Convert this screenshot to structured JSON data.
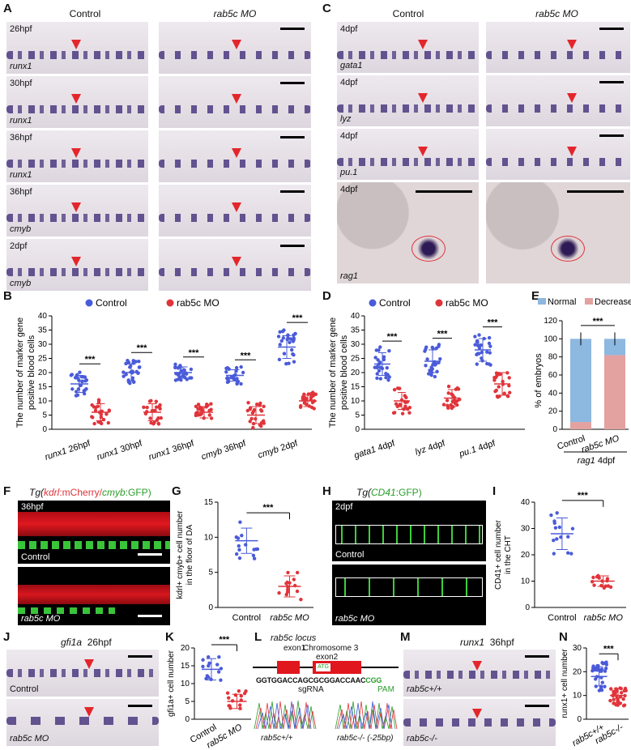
{
  "panels": {
    "A": {
      "label": "A",
      "control": "Control",
      "mo": "rab5c MO",
      "rows": [
        {
          "stage": "26hpf",
          "gene": "runx1"
        },
        {
          "stage": "30hpf",
          "gene": "runx1"
        },
        {
          "stage": "36hpf",
          "gene": "runx1"
        },
        {
          "stage": "36hpf",
          "gene": "cmyb"
        },
        {
          "stage": "2dpf",
          "gene": "cmyb"
        }
      ]
    },
    "C": {
      "label": "C",
      "control": "Control",
      "mo": "rab5c MO",
      "rows": [
        {
          "stage": "4dpf",
          "gene": "gata1"
        },
        {
          "stage": "4dpf",
          "gene": "lyz"
        },
        {
          "stage": "4dpf",
          "gene": "pu.1"
        },
        {
          "stage": "4dpf",
          "gene": "rag1"
        }
      ]
    },
    "B": {
      "label": "B"
    },
    "D": {
      "label": "D"
    },
    "E": {
      "label": "E"
    },
    "F": {
      "label": "F",
      "title_pre": "Tg(",
      "kdrl": "kdrl",
      "mcherry": ":mCherry/",
      "cmyb": "cmyb",
      "gfp": ":GFP)",
      "stage": "36hpf",
      "top": "Control",
      "bottom": "rab5c MO"
    },
    "G": {
      "label": "G"
    },
    "H": {
      "label": "H",
      "title_pre": "Tg(",
      "cd41": "CD41",
      "gfp": ":GFP)",
      "stage": "2dpf",
      "top": "Control",
      "bottom": "rab5c MO"
    },
    "I": {
      "label": "I"
    },
    "J": {
      "label": "J",
      "gene": "gfi1a",
      "stage": "26hpf",
      "top": "Control",
      "bottom": "rab5c MO"
    },
    "K": {
      "label": "K"
    },
    "L": {
      "label": "L",
      "locus": "rab5c locus",
      "exon1": "exon1",
      "exon2": "exon2",
      "chrom": "Chromosome 3",
      "atg": "ATG",
      "seq": "GGTGGACCAGCGCGGACCAAC",
      "pam_seq": "CGG",
      "sgrna": "sgRNA",
      "pam": "PAM",
      "wt": "rab5c+/+",
      "mut": "rab5c-/- (-25bp)"
    },
    "M": {
      "label": "M",
      "gene": "runx1",
      "stage": "36hpf",
      "top": "rab5c+/+",
      "bottom": "rab5c-/-"
    },
    "N": {
      "label": "N"
    }
  },
  "chart_data": [
    {
      "id": "B",
      "type": "scatter",
      "ylabel": "The number of marker gene positive blood cells",
      "ylim": [
        0,
        40
      ],
      "yticks": [
        0,
        5,
        10,
        15,
        20,
        25,
        30,
        35,
        40
      ],
      "legend": [
        {
          "name": "Control",
          "color": "#4a5bd9"
        },
        {
          "name": "rab5c MO",
          "color": "#e0343a"
        }
      ],
      "categories": [
        "runx1 26hpf",
        "runx1 30hpf",
        "runx1 36hpf",
        "cmyb 36hpf",
        "cmyb 2dpf"
      ],
      "series": [
        {
          "name": "Control",
          "means": [
            16,
            20,
            20,
            19,
            29
          ],
          "sd": [
            3,
            3,
            2,
            2,
            4
          ]
        },
        {
          "name": "rab5c MO",
          "means": [
            6,
            6,
            6,
            5,
            10
          ],
          "sd": [
            3,
            3,
            2,
            3,
            2
          ]
        }
      ],
      "significance": [
        "***",
        "***",
        "***",
        "***",
        "***"
      ]
    },
    {
      "id": "D",
      "type": "scatter",
      "ylabel": "The number of marker gene positive blood cells",
      "ylim": [
        0,
        40
      ],
      "yticks": [
        0,
        5,
        10,
        15,
        20,
        25,
        30,
        35,
        40
      ],
      "legend": [
        {
          "name": "Control",
          "color": "#4a5bd9"
        },
        {
          "name": "rab5c MO",
          "color": "#e0343a"
        }
      ],
      "categories": [
        "gata1 4dpf",
        "lyz 4dpf",
        "pu.1 4dpf"
      ],
      "series": [
        {
          "name": "Control",
          "means": [
            23,
            24,
            28
          ],
          "sd": [
            4,
            4,
            4
          ]
        },
        {
          "name": "rab5c MO",
          "means": [
            10,
            11,
            16
          ],
          "sd": [
            3,
            3,
            4
          ]
        }
      ],
      "significance": [
        "***",
        "***",
        "***"
      ]
    },
    {
      "id": "E",
      "type": "bar",
      "ylabel": "% of embryos",
      "ylim": [
        0,
        120
      ],
      "yticks": [
        0,
        20,
        40,
        60,
        80,
        100,
        120
      ],
      "categories": [
        "Control",
        "rab5c MO"
      ],
      "xlabel": "rag1 4dpf",
      "series": [
        {
          "name": "Normal",
          "color": "#8db8e0",
          "values": [
            92,
            18
          ]
        },
        {
          "name": "Decrease",
          "color": "#e3a19f",
          "values": [
            8,
            82
          ]
        }
      ],
      "significance": "***"
    },
    {
      "id": "G",
      "type": "scatter",
      "ylabel": "kdrl+ cmyb+ cell number in the floor of DA",
      "ylim": [
        0,
        15
      ],
      "yticks": [
        0,
        5,
        10,
        15
      ],
      "categories": [
        "Control",
        "rab5c MO"
      ],
      "means": [
        9.5,
        3
      ],
      "sd": [
        1.8,
        1.5
      ],
      "significance": "***"
    },
    {
      "id": "I",
      "type": "scatter",
      "ylabel": "CD41+ cell number in the CHT",
      "ylim": [
        0,
        40
      ],
      "yticks": [
        0,
        10,
        20,
        30,
        40
      ],
      "categories": [
        "Control",
        "rab5c MO"
      ],
      "means": [
        28,
        10
      ],
      "sd": [
        6,
        2
      ],
      "significance": "***"
    },
    {
      "id": "K",
      "type": "scatter",
      "ylabel": "gfi1a+ cell number",
      "ylim": [
        0,
        20
      ],
      "yticks": [
        0,
        5,
        10,
        15,
        20
      ],
      "categories": [
        "Control",
        "rab5c MO"
      ],
      "means": [
        14,
        5
      ],
      "sd": [
        3,
        2
      ],
      "significance": "***"
    },
    {
      "id": "N",
      "type": "scatter",
      "ylabel": "runx1+ cell number",
      "ylim": [
        0,
        30
      ],
      "yticks": [
        0,
        10,
        20,
        30
      ],
      "categories": [
        "rab5c+/+",
        "rab5c-/-"
      ],
      "means": [
        18,
        10
      ],
      "sd": [
        4,
        3
      ],
      "significance": "***"
    }
  ]
}
